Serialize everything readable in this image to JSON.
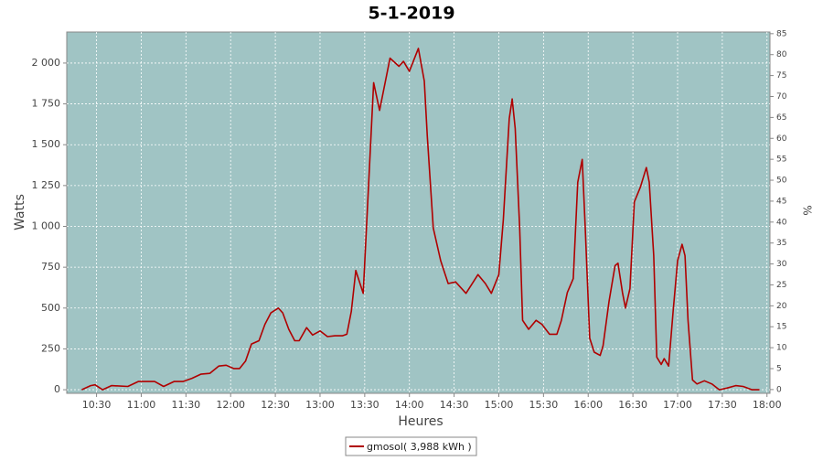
{
  "chart_data": {
    "type": "line",
    "title": "5-1-2019",
    "xlabel": "Heures",
    "ylabel": "Watts",
    "y2label": "%",
    "x": [
      "10:20",
      "10:26",
      "10:29",
      "10:34",
      "10:40",
      "10:51",
      "10:58",
      "11:09",
      "11:15",
      "11:22",
      "11:28",
      "11:34",
      "11:40",
      "11:46",
      "11:52",
      "11:57",
      "12:02",
      "12:06",
      "12:10",
      "12:14",
      "12:19",
      "12:23",
      "12:27",
      "12:32",
      "12:35",
      "12:39",
      "12:43",
      "12:46",
      "12:51",
      "12:55",
      "13:00",
      "13:05",
      "13:10",
      "13:15",
      "13:18",
      "13:21",
      "13:24",
      "13:29",
      "13:36",
      "13:40",
      "13:47",
      "13:53",
      "13:56",
      "14:00",
      "14:06",
      "14:10",
      "14:12",
      "14:16",
      "14:21",
      "14:26",
      "14:31",
      "14:38",
      "14:46",
      "14:51",
      "14:55",
      "15:00",
      "15:03",
      "15:07",
      "15:09",
      "15:11",
      "15:14",
      "15:16",
      "15:20",
      "15:25",
      "15:29",
      "15:34",
      "15:39",
      "15:42",
      "15:46",
      "15:50",
      "15:53",
      "15:56",
      "15:58",
      "16:01",
      "16:04",
      "16:08",
      "16:10",
      "16:14",
      "16:18",
      "16:20",
      "16:23",
      "16:25",
      "16:28",
      "16:31",
      "16:35",
      "16:39",
      "16:41",
      "16:44",
      "16:46",
      "16:49",
      "16:51",
      "16:54",
      "16:57",
      "17:00",
      "17:03",
      "17:05",
      "17:07",
      "17:10",
      "17:13",
      "17:18",
      "17:23",
      "17:28",
      "17:33",
      "17:39",
      "17:44",
      "17:50",
      "17:55"
    ],
    "series": [
      {
        "name": "gmosol( 3,988 kWh )",
        "color": "#b00000",
        "values": [
          0,
          25,
          30,
          0,
          25,
          20,
          50,
          50,
          20,
          50,
          50,
          70,
          95,
          100,
          145,
          150,
          130,
          130,
          175,
          280,
          300,
          400,
          470,
          500,
          470,
          370,
          300,
          300,
          380,
          335,
          360,
          325,
          330,
          330,
          340,
          480,
          730,
          590,
          1880,
          1710,
          2030,
          1980,
          2010,
          1950,
          2090,
          1890,
          1550,
          990,
          790,
          650,
          660,
          590,
          705,
          650,
          590,
          705,
          1040,
          1660,
          1780,
          1600,
          990,
          425,
          370,
          425,
          400,
          340,
          340,
          425,
          595,
          680,
          1270,
          1410,
          990,
          315,
          230,
          210,
          270,
          540,
          760,
          775,
          595,
          500,
          620,
          1150,
          1240,
          1360,
          1270,
          820,
          200,
          155,
          190,
          145,
          480,
          790,
          890,
          820,
          425,
          60,
          35,
          55,
          35,
          0,
          10,
          25,
          20,
          0,
          0
        ]
      }
    ],
    "xlim": [
      "10:10",
      "18:02"
    ],
    "xticks": [
      "10:30",
      "11:00",
      "11:30",
      "12:00",
      "12:30",
      "13:00",
      "13:30",
      "14:00",
      "14:30",
      "15:00",
      "15:30",
      "16:00",
      "16:30",
      "17:00",
      "17:30",
      "18:00"
    ],
    "ylim": [
      -22,
      2190
    ],
    "yticks": [
      0,
      250,
      500,
      750,
      {
        "value": 1000,
        "label": "1 000"
      },
      {
        "value": 1250,
        "label": "1 250"
      },
      {
        "value": 1500,
        "label": "1 500"
      },
      {
        "value": 1750,
        "label": "1 750"
      },
      {
        "value": 2000,
        "label": "2 000"
      }
    ],
    "y2lim": [
      -0.9,
      85.4
    ],
    "y2ticks": [
      0,
      5,
      10,
      15,
      20,
      25,
      30,
      35,
      40,
      45,
      50,
      55,
      60,
      65,
      70,
      75,
      80,
      85
    ],
    "grid": true,
    "background": "#a0c4c4"
  }
}
